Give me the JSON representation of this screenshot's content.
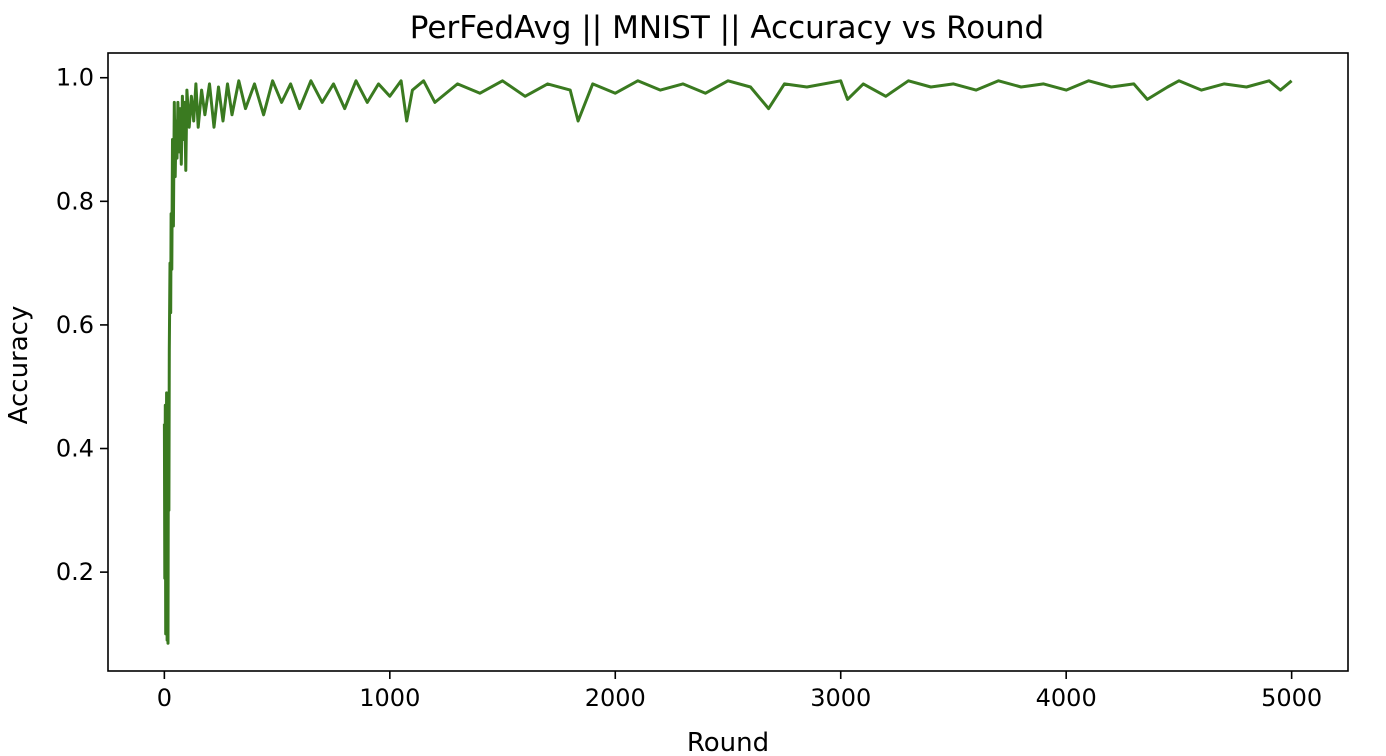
{
  "chart_data": {
    "type": "line",
    "title": "PerFedAvg || MNIST || Accuracy vs Round",
    "xlabel": "Round",
    "ylabel": "Accuracy",
    "xlim": [
      -250,
      5250
    ],
    "ylim": [
      0.04,
      1.04
    ],
    "xticks": [
      0,
      1000,
      2000,
      3000,
      4000,
      5000
    ],
    "yticks": [
      0.2,
      0.4,
      0.6,
      0.8,
      1.0
    ],
    "xtick_labels": [
      "0",
      "1000",
      "2000",
      "3000",
      "4000",
      "5000"
    ],
    "ytick_labels": [
      "0.2",
      "0.4",
      "0.6",
      "0.8",
      "1.0"
    ],
    "grid": false,
    "series": [
      {
        "color": "#3a7a20",
        "x": [
          0,
          2,
          4,
          6,
          8,
          10,
          12,
          14,
          16,
          18,
          20,
          22,
          25,
          28,
          30,
          33,
          36,
          40,
          44,
          48,
          52,
          56,
          60,
          65,
          70,
          75,
          80,
          85,
          90,
          95,
          100,
          110,
          120,
          130,
          140,
          150,
          165,
          180,
          200,
          220,
          240,
          260,
          280,
          300,
          330,
          360,
          400,
          440,
          480,
          520,
          560,
          600,
          650,
          700,
          750,
          800,
          850,
          900,
          950,
          1000,
          1050,
          1075,
          1100,
          1150,
          1200,
          1300,
          1400,
          1500,
          1600,
          1700,
          1800,
          1835,
          1900,
          2000,
          2100,
          2200,
          2300,
          2400,
          2500,
          2600,
          2680,
          2750,
          2850,
          3000,
          3030,
          3100,
          3200,
          3300,
          3400,
          3500,
          3600,
          3700,
          3800,
          3900,
          4000,
          4100,
          4200,
          4300,
          4360,
          4450,
          4500,
          4600,
          4700,
          4800,
          4900,
          4950,
          5000
        ],
        "values": [
          0.44,
          0.19,
          0.47,
          0.1,
          0.38,
          0.49,
          0.09,
          0.4,
          0.085,
          0.45,
          0.3,
          0.56,
          0.7,
          0.62,
          0.78,
          0.69,
          0.9,
          0.76,
          0.96,
          0.84,
          0.93,
          0.87,
          0.96,
          0.88,
          0.95,
          0.86,
          0.97,
          0.9,
          0.96,
          0.85,
          0.98,
          0.92,
          0.97,
          0.93,
          0.99,
          0.92,
          0.98,
          0.94,
          0.99,
          0.92,
          0.985,
          0.93,
          0.99,
          0.94,
          0.995,
          0.95,
          0.99,
          0.94,
          0.995,
          0.96,
          0.99,
          0.95,
          0.995,
          0.96,
          0.99,
          0.95,
          0.995,
          0.96,
          0.99,
          0.97,
          0.995,
          0.93,
          0.98,
          0.995,
          0.96,
          0.99,
          0.975,
          0.995,
          0.97,
          0.99,
          0.98,
          0.93,
          0.99,
          0.975,
          0.995,
          0.98,
          0.99,
          0.975,
          0.995,
          0.985,
          0.95,
          0.99,
          0.985,
          0.995,
          0.965,
          0.99,
          0.97,
          0.995,
          0.985,
          0.99,
          0.98,
          0.995,
          0.985,
          0.99,
          0.98,
          0.995,
          0.985,
          0.99,
          0.965,
          0.985,
          0.995,
          0.98,
          0.99,
          0.985,
          0.995,
          0.98,
          0.995
        ]
      }
    ]
  }
}
